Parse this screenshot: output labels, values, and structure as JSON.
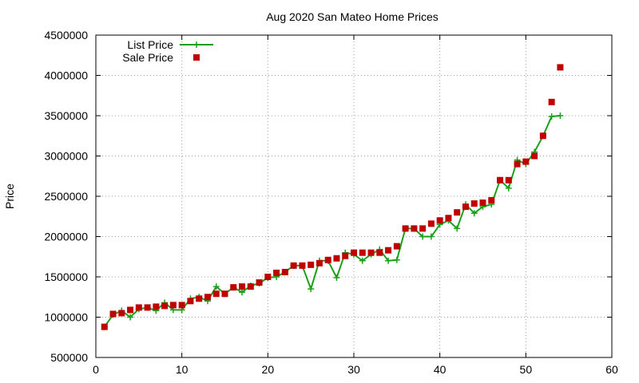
{
  "chart_data": {
    "type": "line",
    "title": "Aug 2020 San Mateo Home Prices",
    "xlabel": "",
    "ylabel": "Price",
    "xlim": [
      0,
      60
    ],
    "ylim": [
      500000,
      4500000
    ],
    "xticks": [
      0,
      10,
      20,
      30,
      40,
      50,
      60
    ],
    "yticks": [
      500000,
      1000000,
      1500000,
      2000000,
      2500000,
      3000000,
      3500000,
      4000000,
      4500000
    ],
    "grid": true,
    "legend": "top-left",
    "series": [
      {
        "name": "List Price",
        "style": "line-plus",
        "color": "#1ca01c",
        "x": [
          1,
          2,
          3,
          4,
          5,
          6,
          7,
          8,
          9,
          10,
          11,
          12,
          13,
          14,
          15,
          16,
          17,
          18,
          19,
          20,
          21,
          22,
          23,
          24,
          25,
          26,
          27,
          28,
          29,
          30,
          31,
          32,
          33,
          34,
          35,
          36,
          37,
          38,
          39,
          40,
          41,
          42,
          43,
          44,
          45,
          46,
          47,
          48,
          49,
          50,
          51,
          52,
          53,
          54
        ],
        "y": [
          880000,
          1030000,
          1080000,
          1000000,
          1100000,
          1120000,
          1080000,
          1180000,
          1090000,
          1090000,
          1230000,
          1250000,
          1200000,
          1380000,
          1290000,
          1370000,
          1310000,
          1390000,
          1420000,
          1490000,
          1500000,
          1560000,
          1640000,
          1640000,
          1350000,
          1700000,
          1700000,
          1490000,
          1800000,
          1780000,
          1700000,
          1780000,
          1840000,
          1700000,
          1710000,
          2100000,
          2100000,
          2000000,
          2000000,
          2150000,
          2200000,
          2100000,
          2400000,
          2290000,
          2370000,
          2400000,
          2700000,
          2600000,
          2950000,
          2900000,
          3050000,
          3250000,
          3490000,
          3500000
        ]
      },
      {
        "name": "Sale Price",
        "style": "square-points",
        "color": "#c00000",
        "x": [
          1,
          2,
          3,
          4,
          5,
          6,
          7,
          8,
          9,
          10,
          11,
          12,
          13,
          14,
          15,
          16,
          17,
          18,
          19,
          20,
          21,
          22,
          23,
          24,
          25,
          26,
          27,
          28,
          29,
          30,
          31,
          32,
          33,
          34,
          35,
          36,
          37,
          38,
          39,
          40,
          41,
          42,
          43,
          44,
          45,
          46,
          47,
          48,
          49,
          50,
          51,
          52,
          53,
          54
        ],
        "y": [
          880000,
          1040000,
          1050000,
          1090000,
          1120000,
          1120000,
          1130000,
          1140000,
          1150000,
          1150000,
          1200000,
          1230000,
          1250000,
          1290000,
          1290000,
          1370000,
          1380000,
          1380000,
          1430000,
          1500000,
          1550000,
          1560000,
          1640000,
          1640000,
          1650000,
          1670000,
          1710000,
          1730000,
          1760000,
          1800000,
          1800000,
          1800000,
          1800000,
          1830000,
          1880000,
          2100000,
          2100000,
          2100000,
          2160000,
          2200000,
          2230000,
          2300000,
          2370000,
          2410000,
          2420000,
          2450000,
          2700000,
          2700000,
          2900000,
          2930000,
          3000000,
          3250000,
          3670000,
          4100000
        ]
      }
    ]
  }
}
